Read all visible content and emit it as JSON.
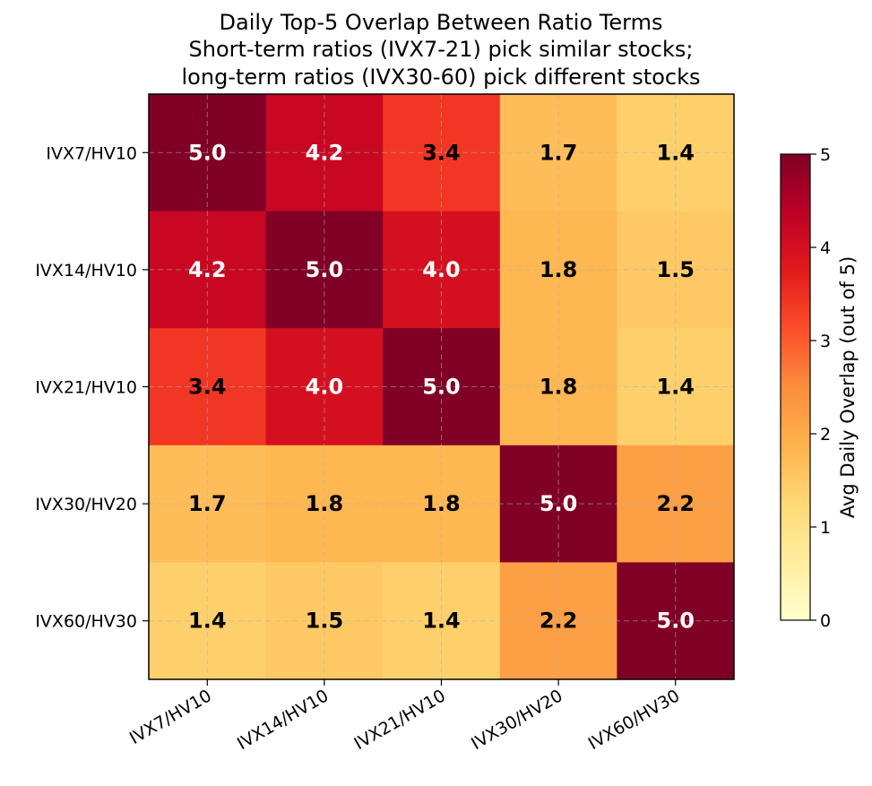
{
  "chart_data": {
    "type": "heatmap",
    "title_lines": [
      "Daily Top-5 Overlap Between Ratio Terms",
      "Short-term ratios (IVX7-21) pick similar stocks;",
      "long-term ratios (IVX30-60) pick different stocks"
    ],
    "row_labels": [
      "IVX7/HV10",
      "IVX14/HV10",
      "IVX21/HV10",
      "IVX30/HV20",
      "IVX60/HV30"
    ],
    "col_labels": [
      "IVX7/HV10",
      "IVX14/HV10",
      "IVX21/HV10",
      "IVX30/HV20",
      "IVX60/HV30"
    ],
    "values": [
      [
        5.0,
        4.2,
        3.4,
        1.7,
        1.4
      ],
      [
        4.2,
        5.0,
        4.0,
        1.8,
        1.5
      ],
      [
        3.4,
        4.0,
        5.0,
        1.8,
        1.4
      ],
      [
        1.7,
        1.8,
        1.8,
        5.0,
        2.2
      ],
      [
        1.4,
        1.5,
        1.4,
        2.2,
        5.0
      ]
    ],
    "cell_labels": [
      [
        "5.0",
        "4.2",
        "3.4",
        "1.7",
        "1.4"
      ],
      [
        "4.2",
        "5.0",
        "4.0",
        "1.8",
        "1.5"
      ],
      [
        "3.4",
        "4.0",
        "5.0",
        "1.8",
        "1.4"
      ],
      [
        "1.7",
        "1.8",
        "1.8",
        "5.0",
        "2.2"
      ],
      [
        "1.4",
        "1.5",
        "1.4",
        "2.2",
        "5.0"
      ]
    ],
    "vmin": 0,
    "vmax": 5,
    "colormap": "YlOrRd",
    "grid": true,
    "colorbar": {
      "label": "Avg Daily Overlap (out of 5)",
      "ticks": [
        0,
        1,
        2,
        3,
        4,
        5
      ],
      "tick_labels": [
        "0",
        "1",
        "2",
        "3",
        "4",
        "5"
      ]
    },
    "text_colors": {
      "dark": "#000000",
      "light": "#ffffff"
    }
  }
}
